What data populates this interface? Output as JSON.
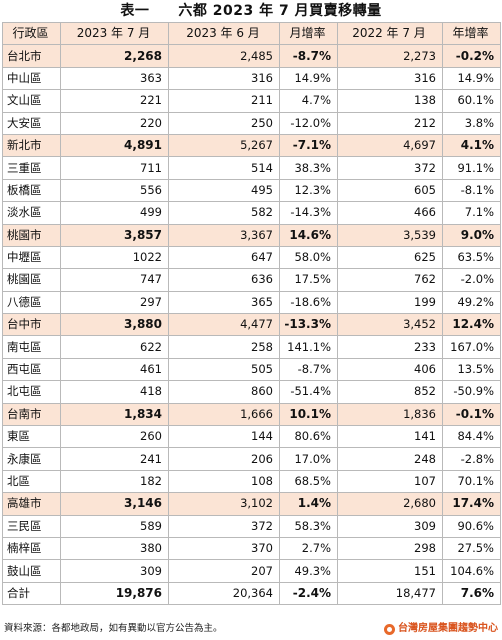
{
  "title": "表一　　六都 2023 年 7 月買賣移轉量",
  "headers": [
    "行政區",
    "2023 年 7 月",
    "2023 年 6 月",
    "月增率",
    "2022 年 7 月",
    "年增率"
  ],
  "rows": [
    {
      "name": "台北市",
      "jul2023": "2,268",
      "jun2023": "2,485",
      "mom": "-8.7%",
      "jul2022": "2,273",
      "yoy": "-0.2%",
      "type": "city"
    },
    {
      "name": "中山區",
      "jul2023": "363",
      "jun2023": "316",
      "mom": "14.9%",
      "jul2022": "316",
      "yoy": "14.9%",
      "type": "district"
    },
    {
      "name": "文山區",
      "jul2023": "221",
      "jun2023": "211",
      "mom": "4.7%",
      "jul2022": "138",
      "yoy": "60.1%",
      "type": "district"
    },
    {
      "name": "大安區",
      "jul2023": "220",
      "jun2023": "250",
      "mom": "-12.0%",
      "jul2022": "212",
      "yoy": "3.8%",
      "type": "district"
    },
    {
      "name": "新北市",
      "jul2023": "4,891",
      "jun2023": "5,267",
      "mom": "-7.1%",
      "jul2022": "4,697",
      "yoy": "4.1%",
      "type": "city"
    },
    {
      "name": "三重區",
      "jul2023": "711",
      "jun2023": "514",
      "mom": "38.3%",
      "jul2022": "372",
      "yoy": "91.1%",
      "type": "district"
    },
    {
      "name": "板橋區",
      "jul2023": "556",
      "jun2023": "495",
      "mom": "12.3%",
      "jul2022": "605",
      "yoy": "-8.1%",
      "type": "district"
    },
    {
      "name": "淡水區",
      "jul2023": "499",
      "jun2023": "582",
      "mom": "-14.3%",
      "jul2022": "466",
      "yoy": "7.1%",
      "type": "district"
    },
    {
      "name": "桃園市",
      "jul2023": "3,857",
      "jun2023": "3,367",
      "mom": "14.6%",
      "jul2022": "3,539",
      "yoy": "9.0%",
      "type": "city"
    },
    {
      "name": "中壢區",
      "jul2023": "1022",
      "jun2023": "647",
      "mom": "58.0%",
      "jul2022": "625",
      "yoy": "63.5%",
      "type": "district"
    },
    {
      "name": "桃園區",
      "jul2023": "747",
      "jun2023": "636",
      "mom": "17.5%",
      "jul2022": "762",
      "yoy": "-2.0%",
      "type": "district"
    },
    {
      "name": "八德區",
      "jul2023": "297",
      "jun2023": "365",
      "mom": "-18.6%",
      "jul2022": "199",
      "yoy": "49.2%",
      "type": "district"
    },
    {
      "name": "台中市",
      "jul2023": "3,880",
      "jun2023": "4,477",
      "mom": "-13.3%",
      "jul2022": "3,452",
      "yoy": "12.4%",
      "type": "city"
    },
    {
      "name": "南屯區",
      "jul2023": "622",
      "jun2023": "258",
      "mom": "141.1%",
      "jul2022": "233",
      "yoy": "167.0%",
      "type": "district"
    },
    {
      "name": "西屯區",
      "jul2023": "461",
      "jun2023": "505",
      "mom": "-8.7%",
      "jul2022": "406",
      "yoy": "13.5%",
      "type": "district"
    },
    {
      "name": "北屯區",
      "jul2023": "418",
      "jun2023": "860",
      "mom": "-51.4%",
      "jul2022": "852",
      "yoy": "-50.9%",
      "type": "district"
    },
    {
      "name": "台南市",
      "jul2023": "1,834",
      "jun2023": "1,666",
      "mom": "10.1%",
      "jul2022": "1,836",
      "yoy": "-0.1%",
      "type": "city"
    },
    {
      "name": "東區",
      "jul2023": "260",
      "jun2023": "144",
      "mom": "80.6%",
      "jul2022": "141",
      "yoy": "84.4%",
      "type": "district"
    },
    {
      "name": "永康區",
      "jul2023": "241",
      "jun2023": "206",
      "mom": "17.0%",
      "jul2022": "248",
      "yoy": "-2.8%",
      "type": "district"
    },
    {
      "name": "北區",
      "jul2023": "182",
      "jun2023": "108",
      "mom": "68.5%",
      "jul2022": "107",
      "yoy": "70.1%",
      "type": "district"
    },
    {
      "name": "高雄市",
      "jul2023": "3,146",
      "jun2023": "3,102",
      "mom": "1.4%",
      "jul2022": "2,680",
      "yoy": "17.4%",
      "type": "city"
    },
    {
      "name": "三民區",
      "jul2023": "589",
      "jun2023": "372",
      "mom": "58.3%",
      "jul2022": "309",
      "yoy": "90.6%",
      "type": "district"
    },
    {
      "name": "楠梓區",
      "jul2023": "380",
      "jun2023": "370",
      "mom": "2.7%",
      "jul2022": "298",
      "yoy": "27.5%",
      "type": "district"
    },
    {
      "name": "鼓山區",
      "jul2023": "309",
      "jun2023": "207",
      "mom": "49.3%",
      "jul2022": "151",
      "yoy": "104.6%",
      "type": "district"
    },
    {
      "name": "合計",
      "jul2023": "19,876",
      "jun2023": "20,364",
      "mom": "-2.4%",
      "jul2022": "18,477",
      "yoy": "7.6%",
      "type": "total"
    }
  ],
  "footer": {
    "source": "資料來源：各都地政局，如有異動以官方公告為主。",
    "brand": "台灣房屋集團趨勢中心",
    "brand_color": "#d9541e",
    "highlight_color": "#fbe4d5"
  }
}
